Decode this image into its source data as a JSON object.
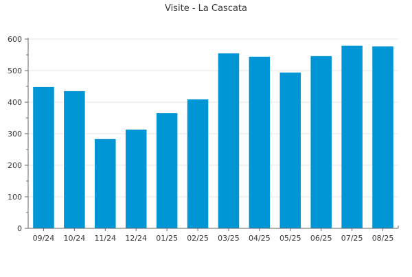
{
  "chart_data": {
    "type": "bar",
    "title": "Visite - La Cascata",
    "xlabel": "",
    "ylabel": "",
    "categories": [
      "09/24",
      "10/24",
      "11/24",
      "12/24",
      "01/25",
      "02/25",
      "03/25",
      "04/25",
      "05/25",
      "06/25",
      "07/25",
      "08/25"
    ],
    "values": [
      448,
      435,
      283,
      313,
      365,
      409,
      555,
      544,
      494,
      546,
      579,
      577
    ],
    "ylim": [
      0,
      600
    ],
    "yticks": [
      0,
      100,
      200,
      300,
      400,
      500,
      600
    ],
    "grid": true,
    "legend": "none",
    "colors": {
      "bar": "#0096d6",
      "grid": "#e6e6e6",
      "axis": "#666666",
      "text": "#333333"
    }
  }
}
